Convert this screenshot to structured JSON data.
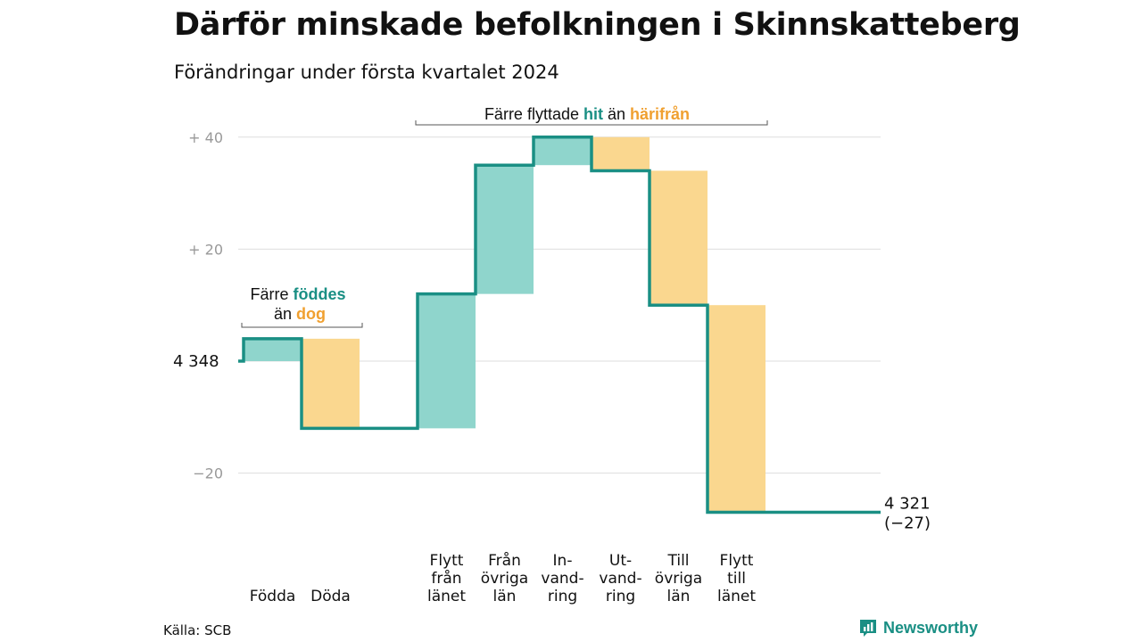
{
  "title": "Därför minskade befolkningen i Skinnskatteberg",
  "subtitle": "Förändringar under första kvartalet 2024",
  "source": "Källa: SCB",
  "brand": "Newsworthy",
  "colors": {
    "increase": "#8fd5cc",
    "decrease": "#fad78f",
    "line": "#1a8f84",
    "accent_orange": "#f0a030",
    "grid": "#dddddd",
    "tick": "#999999"
  },
  "chart_data": {
    "type": "waterfall",
    "start_value": 4348,
    "start_label": "4 348",
    "end_label": "4 321",
    "end_change_label": "(−27)",
    "y_ticks": [
      {
        "value": 40,
        "label": "+  40"
      },
      {
        "value": 20,
        "label": "+  20"
      },
      {
        "value": 0,
        "label": ""
      },
      {
        "value": -20,
        "label": "−20"
      }
    ],
    "ylim": [
      -27,
      40
    ],
    "categories": [
      {
        "label": [
          "Födda"
        ],
        "change": 4,
        "kind": "increase"
      },
      {
        "label": [
          "Döda"
        ],
        "change": -16,
        "kind": "decrease"
      },
      {
        "label": [
          ""
        ],
        "change": 0,
        "kind": "gap"
      },
      {
        "label": [
          "Flytt",
          "från",
          "länet"
        ],
        "change": 24,
        "kind": "increase"
      },
      {
        "label": [
          "Från",
          "övriga",
          "län"
        ],
        "change": 23,
        "kind": "increase"
      },
      {
        "label": [
          "In-",
          "vand-",
          "ring"
        ],
        "change": 5,
        "kind": "increase"
      },
      {
        "label": [
          "Ut-",
          "vand-",
          "ring"
        ],
        "change": -6,
        "kind": "decrease"
      },
      {
        "label": [
          "Till",
          "övriga",
          "län"
        ],
        "change": -24,
        "kind": "decrease"
      },
      {
        "label": [
          "Flytt",
          "till",
          "länet"
        ],
        "change": -37,
        "kind": "decrease"
      }
    ],
    "annotations": [
      {
        "line1_parts": [
          {
            "text": "Färre ",
            "style": "plain"
          },
          {
            "text": "föddes",
            "style": "increase"
          }
        ],
        "line2_parts": [
          {
            "text": "än ",
            "style": "plain"
          },
          {
            "text": "dog",
            "style": "decrease"
          }
        ]
      },
      {
        "line1_parts": [
          {
            "text": "Färre flyttade ",
            "style": "plain"
          },
          {
            "text": "hit",
            "style": "increase"
          },
          {
            "text": "  än ",
            "style": "plain"
          },
          {
            "text": "härifrån",
            "style": "decrease"
          }
        ]
      }
    ]
  }
}
